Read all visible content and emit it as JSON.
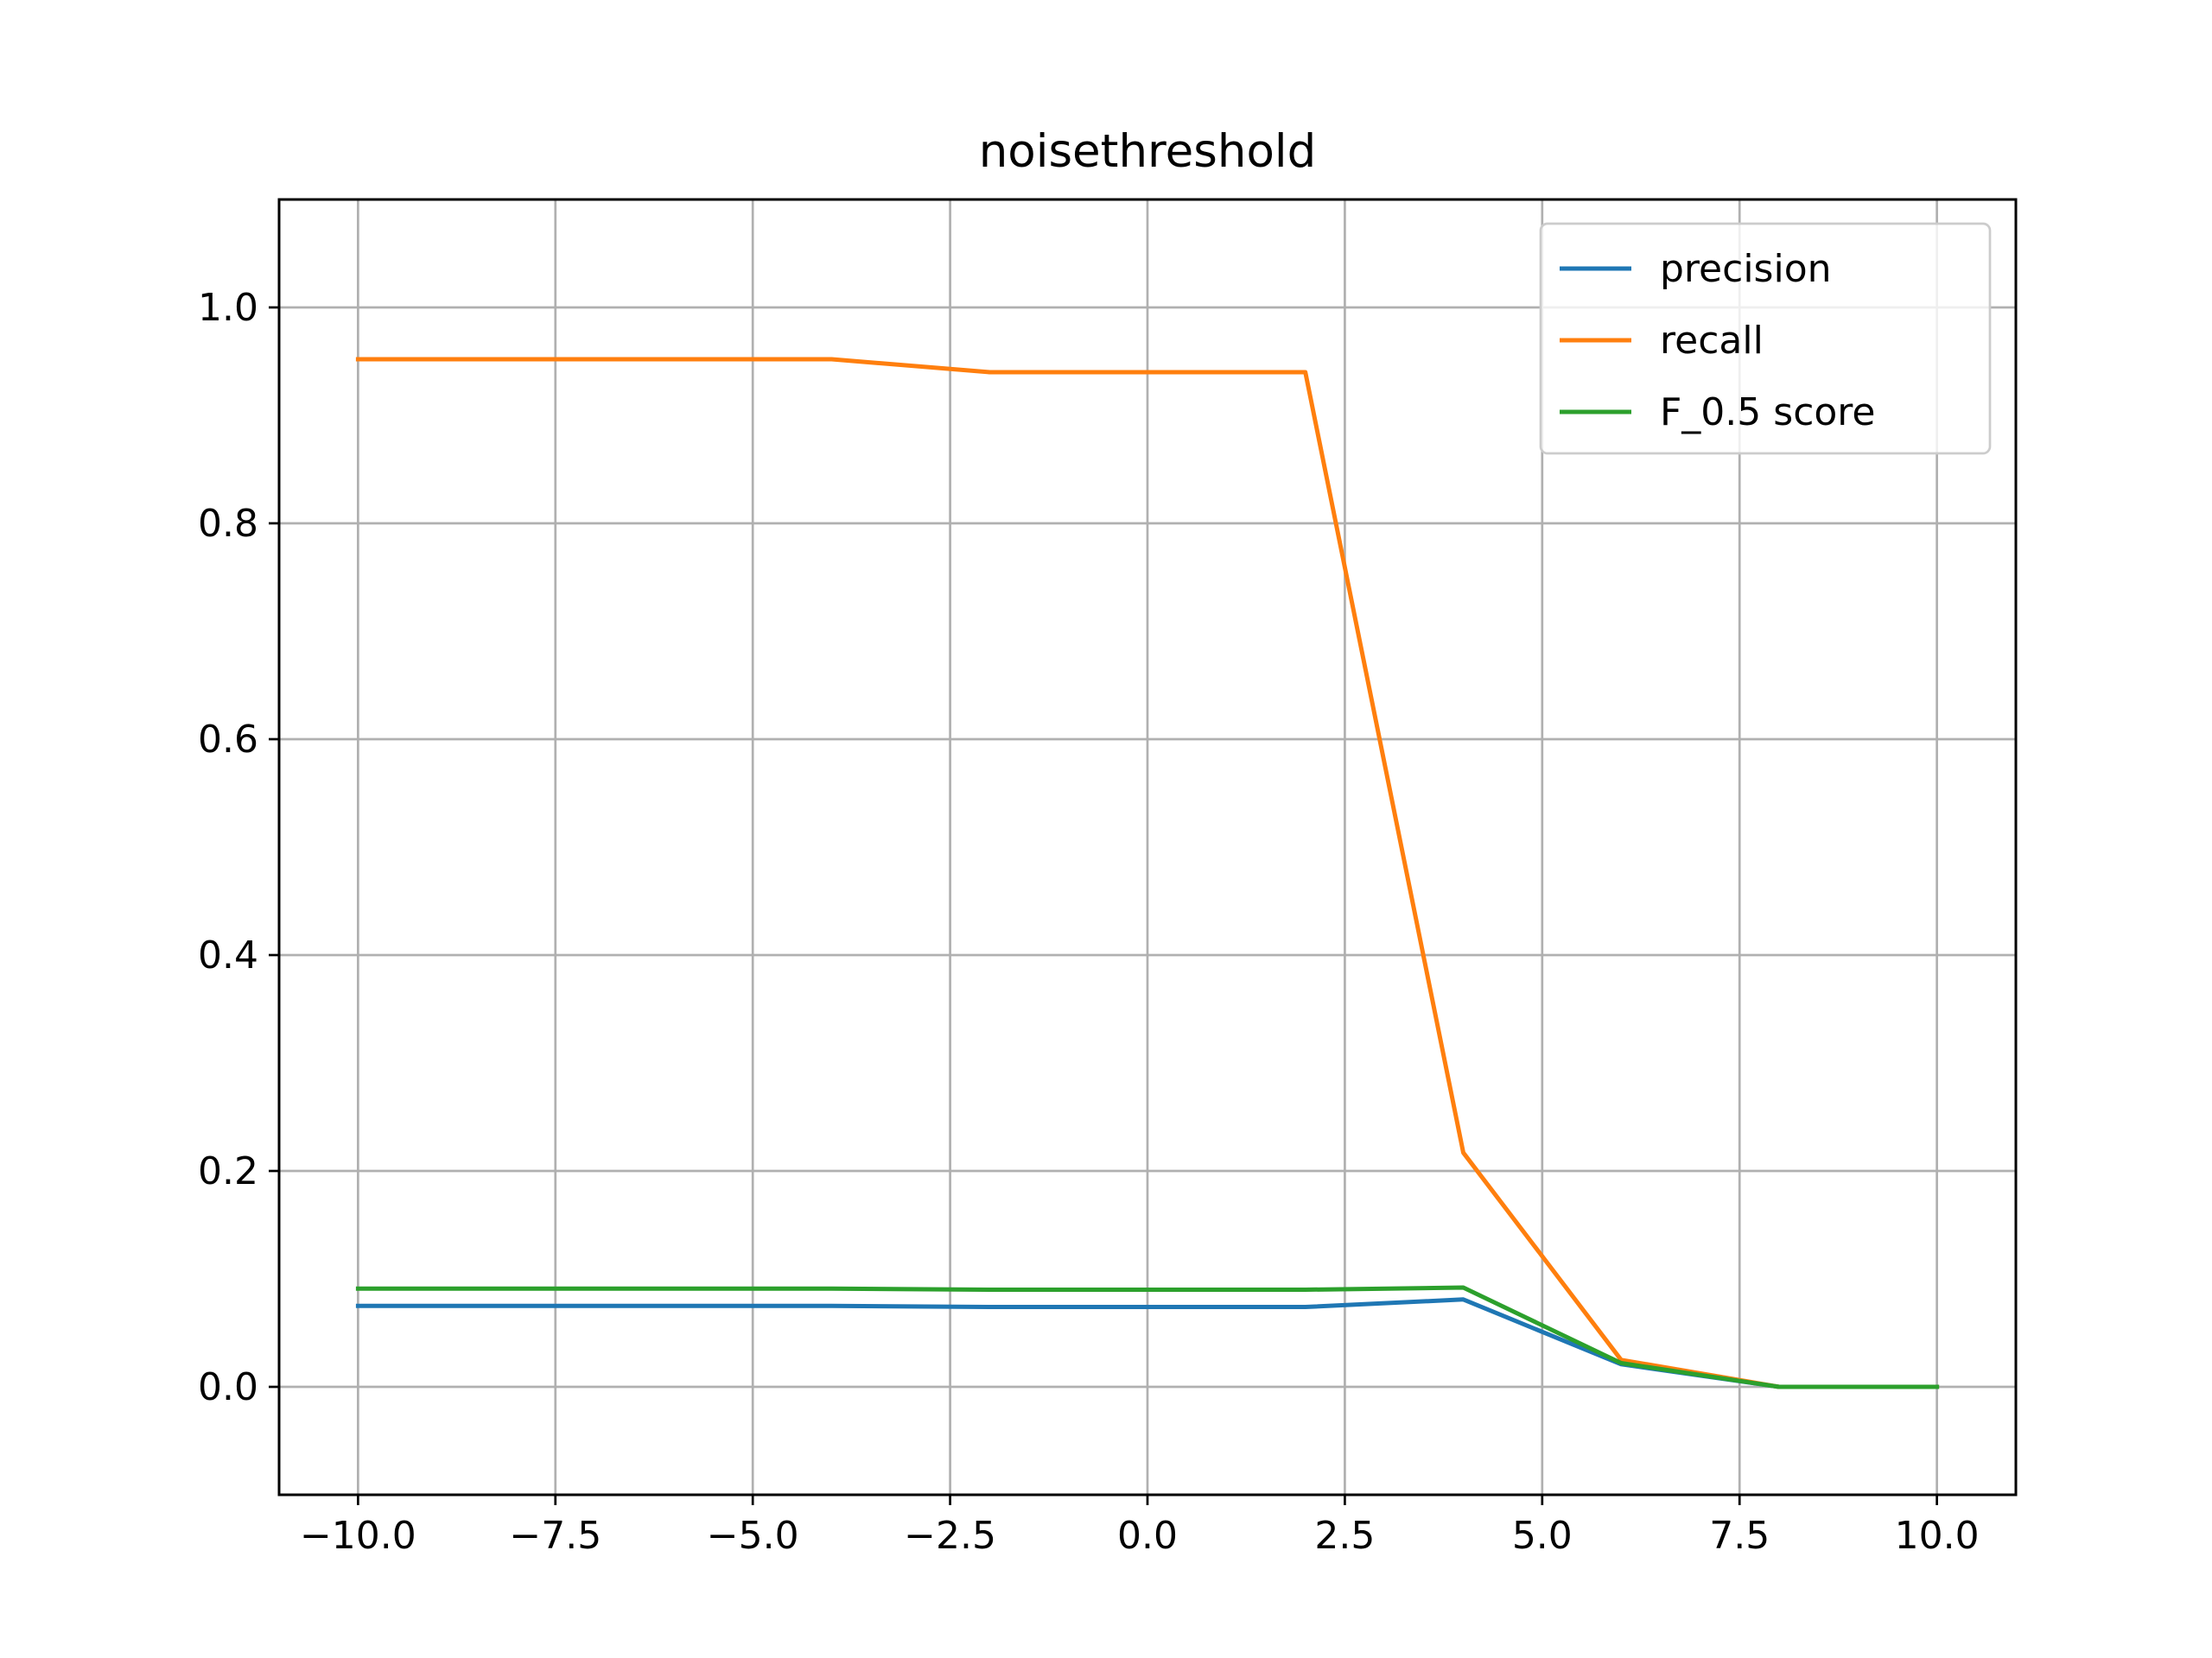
{
  "chart_data": {
    "type": "line",
    "title": "noisethreshold",
    "xlabel": "",
    "ylabel": "",
    "xlim": [
      -11,
      11
    ],
    "ylim": [
      -0.1,
      1.1
    ],
    "grid": true,
    "legend_position": "top-right",
    "x_ticks": [
      -10.0,
      -7.5,
      -5.0,
      -2.5,
      0.0,
      2.5,
      5.0,
      7.5,
      10.0
    ],
    "x_tick_labels": [
      "−10.0",
      "−7.5",
      "−5.0",
      "−2.5",
      "0.0",
      "2.5",
      "5.0",
      "7.5",
      "10.0"
    ],
    "y_ticks": [
      0.0,
      0.2,
      0.4,
      0.6,
      0.8,
      1.0
    ],
    "y_tick_labels": [
      "0.0",
      "0.2",
      "0.4",
      "0.6",
      "0.8",
      "1.0"
    ],
    "x": [
      -10,
      -8,
      -6,
      -4,
      -2,
      0,
      2,
      4,
      6,
      8,
      10
    ],
    "series": [
      {
        "name": "precision",
        "color": "#1f77b4",
        "values": [
          0.075,
          0.075,
          0.075,
          0.075,
          0.074,
          0.074,
          0.074,
          0.081,
          0.021,
          0.0,
          0.0
        ]
      },
      {
        "name": "recall",
        "color": "#ff7f0e",
        "values": [
          0.952,
          0.952,
          0.952,
          0.952,
          0.94,
          0.94,
          0.94,
          0.217,
          0.025,
          0.0,
          0.0
        ]
      },
      {
        "name": "F_0.5 score",
        "color": "#2ca02c",
        "values": [
          0.091,
          0.091,
          0.091,
          0.091,
          0.09,
          0.09,
          0.09,
          0.092,
          0.022,
          0.0,
          0.0
        ]
      }
    ]
  }
}
